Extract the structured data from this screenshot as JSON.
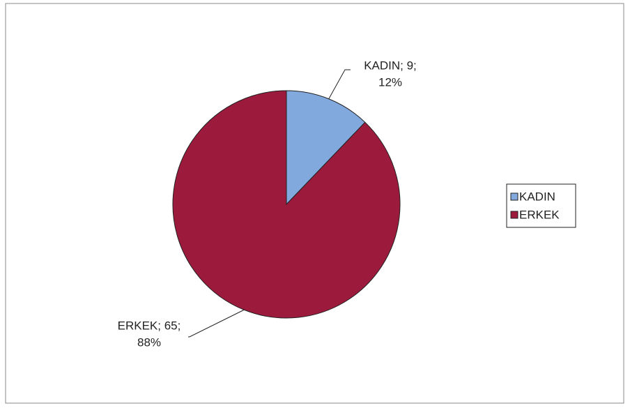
{
  "chart_data": {
    "type": "pie",
    "categories": [
      "KADIN",
      "ERKEK"
    ],
    "values": [
      9,
      65
    ],
    "value_labels": [
      [
        "KADIN; 9;",
        "12%"
      ],
      [
        "ERKEK; 65;",
        "88%"
      ]
    ],
    "colors": [
      "#82a9dd",
      "#9c1a3c"
    ],
    "legend": "right"
  }
}
